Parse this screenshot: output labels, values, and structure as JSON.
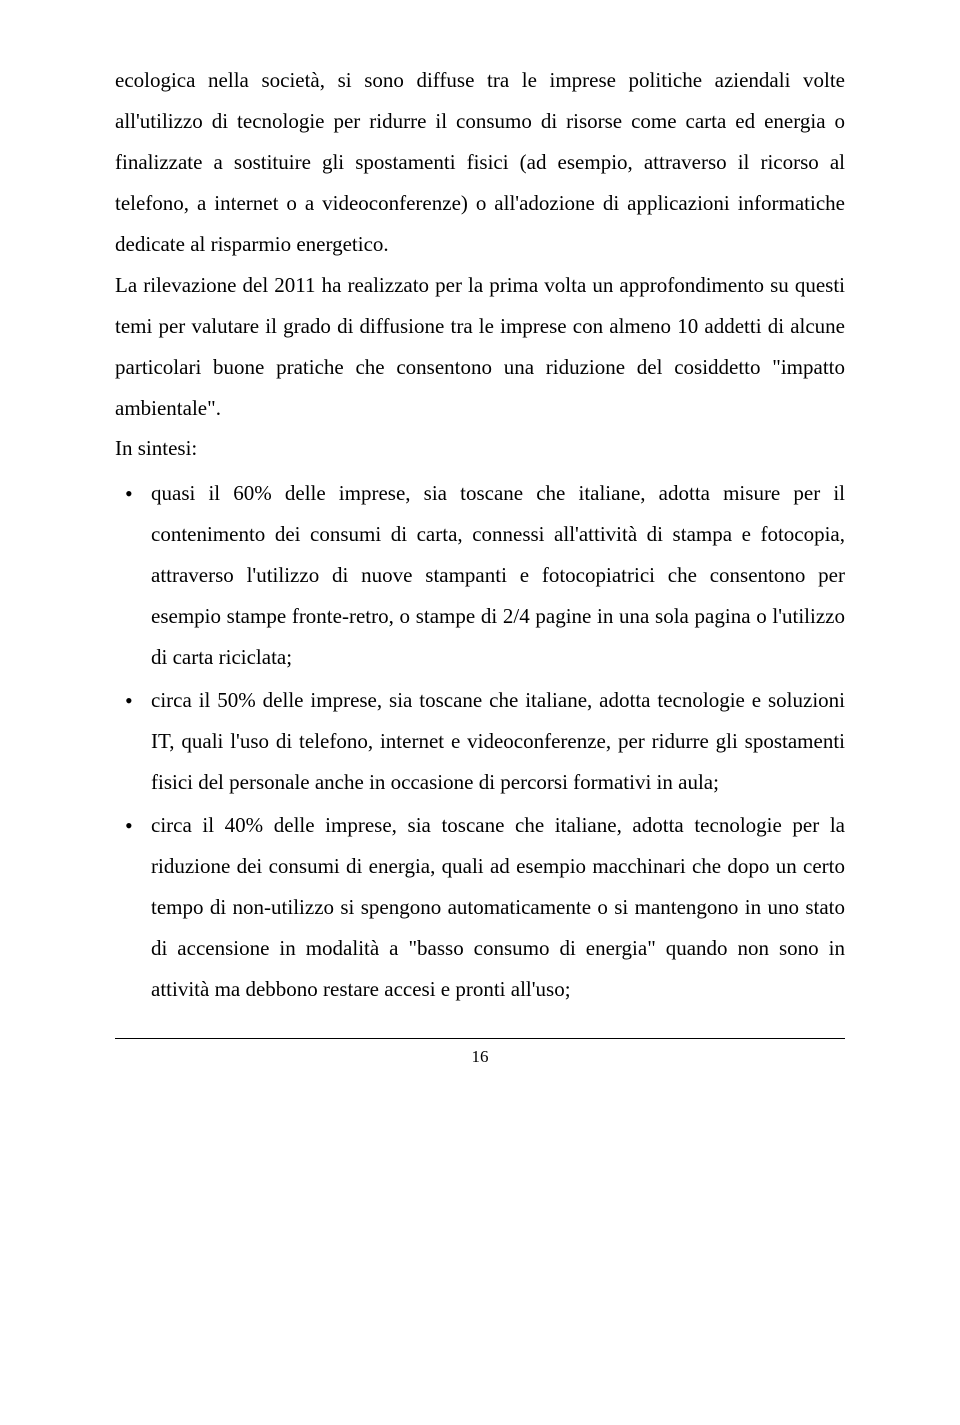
{
  "paragraphs": {
    "p1": "ecologica nella società, si sono diffuse tra le imprese politiche aziendali volte all'utilizzo di tecnologie per ridurre il consumo di risorse come carta ed energia o finalizzate a sostituire gli spostamenti fisici (ad esempio, attraverso il ricorso al telefono, a internet o a videoconferenze) o all'adozione di applicazioni informatiche dedicate al risparmio energetico.",
    "p2": "La rilevazione del 2011 ha realizzato per la prima volta un approfondimento su questi temi per valutare il grado di diffusione tra le imprese con almeno 10 addetti di alcune particolari buone pratiche che consentono una riduzione del cosiddetto \"impatto ambientale\".",
    "p3": "In sintesi:"
  },
  "bullets": [
    "quasi il 60% delle imprese, sia toscane che italiane, adotta misure per il contenimento dei consumi di carta, connessi all'attività di stampa e fotocopia, attraverso l'utilizzo di nuove stampanti e fotocopiatrici che consentono per esempio stampe fronte-retro, o stampe di 2/4 pagine in una sola pagina o l'utilizzo di carta riciclata;",
    "circa il 50% delle imprese, sia toscane che italiane, adotta tecnologie e soluzioni IT, quali l'uso di telefono, internet e videoconferenze, per ridurre gli spostamenti fisici del personale anche in occasione di percorsi formativi in aula;",
    "circa il 40% delle imprese, sia toscane che italiane, adotta tecnologie per la riduzione dei consumi di energia, quali ad esempio macchinari che dopo un certo tempo di non-utilizzo si spengono automaticamente o si mantengono in uno stato di accensione in modalità a \"basso consumo di energia\" quando non sono in attività ma debbono restare accesi e pronti all'uso;"
  ],
  "page_number": "16"
}
